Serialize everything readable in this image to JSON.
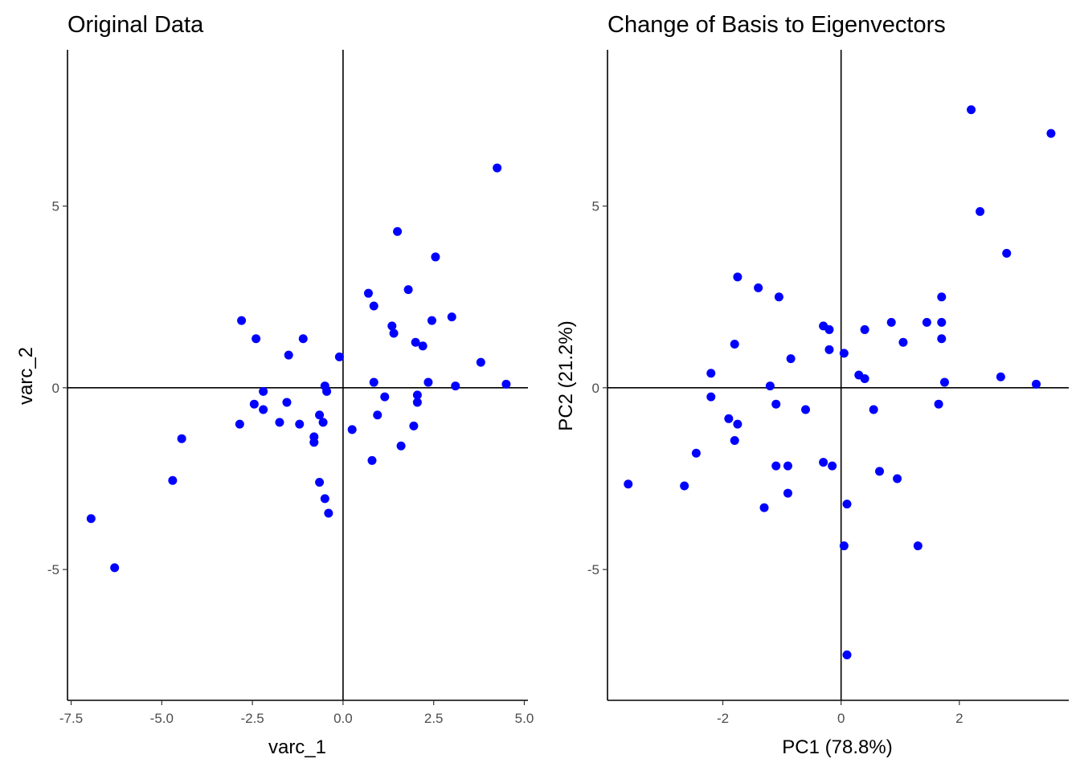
{
  "chart_data": [
    {
      "type": "scatter",
      "title": "Original Data",
      "xlabel": "varc_1",
      "ylabel": "varc_2",
      "xlim": [
        -7.6,
        5.1
      ],
      "ylim": [
        -8.6,
        9.3
      ],
      "xticks": [
        -7.5,
        -5.0,
        -2.5,
        0.0,
        2.5,
        5.0
      ],
      "xtick_labels": [
        "-7.5",
        "-5.0",
        "-2.5",
        "0.0",
        "2.5",
        "5.0"
      ],
      "yticks": [
        -5,
        0,
        5
      ],
      "ytick_labels": [
        "-5",
        "0",
        "5"
      ],
      "grid": false,
      "reference_lines": {
        "x": 0,
        "y": 0
      },
      "point_color": "#0000ff",
      "points": [
        {
          "x": -6.95,
          "y": -3.6
        },
        {
          "x": -6.3,
          "y": -4.95
        },
        {
          "x": -4.7,
          "y": -2.55
        },
        {
          "x": -4.45,
          "y": -1.4
        },
        {
          "x": -2.8,
          "y": 1.85
        },
        {
          "x": -2.85,
          "y": -1.0
        },
        {
          "x": -2.4,
          "y": 1.35
        },
        {
          "x": -2.45,
          "y": -0.45
        },
        {
          "x": -2.2,
          "y": -0.1
        },
        {
          "x": -2.2,
          "y": -0.6
        },
        {
          "x": -1.75,
          "y": -0.95
        },
        {
          "x": -1.5,
          "y": 0.9
        },
        {
          "x": -1.55,
          "y": -0.4
        },
        {
          "x": -1.2,
          "y": -1.0
        },
        {
          "x": -1.1,
          "y": 1.35
        },
        {
          "x": -0.8,
          "y": -1.35
        },
        {
          "x": -0.8,
          "y": -1.5
        },
        {
          "x": -0.65,
          "y": -0.75
        },
        {
          "x": -0.65,
          "y": -2.6
        },
        {
          "x": -0.55,
          "y": -0.95
        },
        {
          "x": -0.5,
          "y": 0.05
        },
        {
          "x": -0.45,
          "y": -0.1
        },
        {
          "x": -0.5,
          "y": -3.05
        },
        {
          "x": -0.4,
          "y": -3.45
        },
        {
          "x": -0.1,
          "y": 0.85
        },
        {
          "x": 0.25,
          "y": -1.15
        },
        {
          "x": 0.7,
          "y": 2.6
        },
        {
          "x": 0.85,
          "y": 2.25
        },
        {
          "x": 0.85,
          "y": 0.15
        },
        {
          "x": 0.95,
          "y": -0.75
        },
        {
          "x": 0.8,
          "y": -2.0
        },
        {
          "x": 1.15,
          "y": -0.25
        },
        {
          "x": 1.35,
          "y": 1.7
        },
        {
          "x": 1.4,
          "y": 1.5
        },
        {
          "x": 1.5,
          "y": 4.3
        },
        {
          "x": 1.6,
          "y": -1.6
        },
        {
          "x": 1.8,
          "y": 2.7
        },
        {
          "x": 1.95,
          "y": -1.05
        },
        {
          "x": 2.0,
          "y": 1.25
        },
        {
          "x": 2.05,
          "y": -0.2
        },
        {
          "x": 2.05,
          "y": -0.4
        },
        {
          "x": 2.2,
          "y": 1.15
        },
        {
          "x": 2.35,
          "y": 0.15
        },
        {
          "x": 2.45,
          "y": 1.85
        },
        {
          "x": 2.55,
          "y": 3.6
        },
        {
          "x": 3.0,
          "y": 1.95
        },
        {
          "x": 3.1,
          "y": 0.05
        },
        {
          "x": 3.8,
          "y": 0.7
        },
        {
          "x": 4.25,
          "y": 6.05
        },
        {
          "x": 4.5,
          "y": 0.1
        }
      ]
    },
    {
      "type": "scatter",
      "title": "Change of Basis to Eigenvectors",
      "xlabel": "PC1 (78.8%)",
      "ylabel": "PC2 (21.2%)",
      "xlim": [
        -3.95,
        3.85
      ],
      "ylim": [
        -8.6,
        9.3
      ],
      "xticks": [
        -2,
        0,
        2
      ],
      "xtick_labels": [
        "-2",
        "0",
        "2"
      ],
      "yticks": [
        -5,
        0,
        5
      ],
      "ytick_labels": [
        "-5",
        "0",
        "5"
      ],
      "grid": false,
      "reference_lines": {
        "x": 0,
        "y": 0
      },
      "point_color": "#0000ff",
      "points": [
        {
          "x": -3.6,
          "y": -2.65
        },
        {
          "x": -2.65,
          "y": -2.7
        },
        {
          "x": -2.45,
          "y": -1.8
        },
        {
          "x": -2.2,
          "y": 0.4
        },
        {
          "x": -2.2,
          "y": -0.25
        },
        {
          "x": -1.9,
          "y": -0.85
        },
        {
          "x": -1.8,
          "y": 1.2
        },
        {
          "x": -1.8,
          "y": -1.45
        },
        {
          "x": -1.75,
          "y": 3.05
        },
        {
          "x": -1.75,
          "y": -1.0
        },
        {
          "x": -1.4,
          "y": 2.75
        },
        {
          "x": -1.3,
          "y": -3.3
        },
        {
          "x": -1.2,
          "y": 0.05
        },
        {
          "x": -1.1,
          "y": -0.45
        },
        {
          "x": -1.1,
          "y": -2.15
        },
        {
          "x": -1.05,
          "y": 2.5
        },
        {
          "x": -0.9,
          "y": -2.9
        },
        {
          "x": -0.9,
          "y": -2.15
        },
        {
          "x": -0.85,
          "y": 0.8
        },
        {
          "x": -0.6,
          "y": -0.6
        },
        {
          "x": -0.3,
          "y": 1.7
        },
        {
          "x": -0.3,
          "y": -2.05
        },
        {
          "x": -0.2,
          "y": 1.6
        },
        {
          "x": -0.2,
          "y": 1.05
        },
        {
          "x": -0.15,
          "y": -2.15
        },
        {
          "x": 0.05,
          "y": 0.95
        },
        {
          "x": 0.05,
          "y": -4.35
        },
        {
          "x": 0.1,
          "y": -7.35
        },
        {
          "x": 0.1,
          "y": -3.2
        },
        {
          "x": 0.3,
          "y": 0.35
        },
        {
          "x": 0.4,
          "y": 0.25
        },
        {
          "x": 0.4,
          "y": 1.6
        },
        {
          "x": 0.55,
          "y": -0.6
        },
        {
          "x": 0.65,
          "y": -2.3
        },
        {
          "x": 0.85,
          "y": 1.8
        },
        {
          "x": 0.95,
          "y": -2.5
        },
        {
          "x": 1.05,
          "y": 1.25
        },
        {
          "x": 1.3,
          "y": -4.35
        },
        {
          "x": 1.45,
          "y": 1.8
        },
        {
          "x": 1.65,
          "y": -0.45
        },
        {
          "x": 1.7,
          "y": 2.5
        },
        {
          "x": 1.7,
          "y": 1.8
        },
        {
          "x": 1.7,
          "y": 1.35
        },
        {
          "x": 1.75,
          "y": 0.15
        },
        {
          "x": 2.2,
          "y": 7.65
        },
        {
          "x": 2.35,
          "y": 4.85
        },
        {
          "x": 2.7,
          "y": 0.3
        },
        {
          "x": 2.8,
          "y": 3.7
        },
        {
          "x": 3.3,
          "y": 0.1
        },
        {
          "x": 3.55,
          "y": 7.0
        }
      ]
    }
  ]
}
